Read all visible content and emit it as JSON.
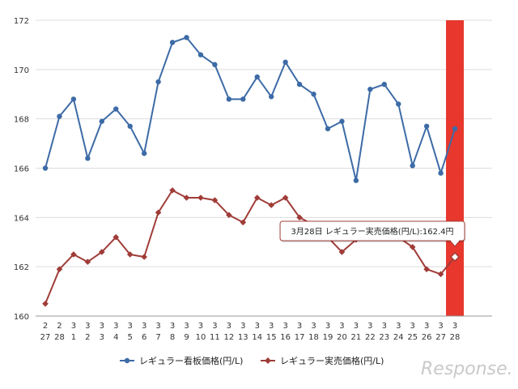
{
  "chart_data": {
    "type": "line",
    "categories": [
      [
        "2",
        "27"
      ],
      [
        "2",
        "28"
      ],
      [
        "3",
        "1"
      ],
      [
        "3",
        "2"
      ],
      [
        "3",
        "3"
      ],
      [
        "3",
        "4"
      ],
      [
        "3",
        "5"
      ],
      [
        "3",
        "6"
      ],
      [
        "3",
        "7"
      ],
      [
        "3",
        "8"
      ],
      [
        "3",
        "9"
      ],
      [
        "3",
        "10"
      ],
      [
        "3",
        "11"
      ],
      [
        "3",
        "12"
      ],
      [
        "3",
        "13"
      ],
      [
        "3",
        "14"
      ],
      [
        "3",
        "15"
      ],
      [
        "3",
        "16"
      ],
      [
        "3",
        "17"
      ],
      [
        "3",
        "18"
      ],
      [
        "3",
        "19"
      ],
      [
        "3",
        "20"
      ],
      [
        "3",
        "21"
      ],
      [
        "3",
        "22"
      ],
      [
        "3",
        "23"
      ],
      [
        "3",
        "24"
      ],
      [
        "3",
        "25"
      ],
      [
        "3",
        "26"
      ],
      [
        "3",
        "27"
      ],
      [
        "3",
        "28"
      ]
    ],
    "series": [
      {
        "name": "レギュラー看板価格(円/L)",
        "color": "#3d6ba6",
        "marker": "circle",
        "values": [
          166.0,
          168.1,
          168.8,
          166.4,
          167.9,
          168.4,
          167.7,
          166.6,
          169.5,
          171.1,
          171.3,
          170.6,
          170.2,
          168.8,
          168.8,
          169.7,
          168.9,
          170.3,
          169.4,
          169.0,
          167.6,
          167.9,
          165.5,
          169.2,
          169.4,
          168.6,
          166.1,
          167.7,
          165.8,
          167.6
        ]
      },
      {
        "name": "レギュラー実売価格(円/L)",
        "color": "#a03c38",
        "marker": "diamond",
        "values": [
          160.5,
          161.9,
          162.5,
          162.2,
          162.6,
          163.2,
          162.5,
          162.4,
          164.2,
          165.1,
          164.8,
          164.8,
          164.7,
          164.1,
          163.8,
          164.8,
          164.5,
          164.8,
          164.0,
          163.7,
          163.2,
          162.6,
          163.1,
          163.5,
          163.4,
          163.2,
          162.8,
          161.9,
          161.7,
          162.4
        ]
      }
    ],
    "yticks": [
      160,
      162,
      164,
      166,
      168,
      170,
      172
    ],
    "ylim": [
      160,
      172
    ],
    "grid": true,
    "legend_position": "bottom",
    "highlight_index": 29,
    "highlight_color": "#e8372c",
    "tooltip": {
      "text": "3月28日 レギュラー実売価格(円/L):162.4円",
      "series_index": 1,
      "point_index": 29
    }
  },
  "watermark": "Response."
}
